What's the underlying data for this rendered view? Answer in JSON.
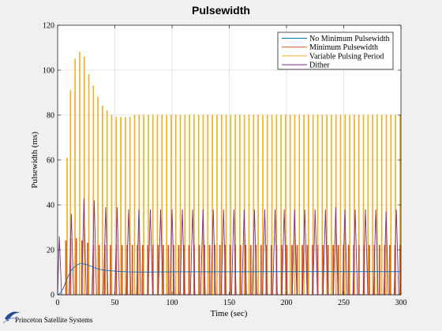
{
  "chart_data": {
    "type": "line",
    "title": "Pulsewidth",
    "xlabel": "Time (sec)",
    "ylabel": "Pulsewidth (ms)",
    "xlim": [
      0,
      300
    ],
    "ylim": [
      0,
      120
    ],
    "xticks": [
      0,
      50,
      100,
      150,
      200,
      250,
      300
    ],
    "yticks": [
      0,
      20,
      40,
      60,
      80,
      100,
      120
    ],
    "grid": true,
    "legend_position": "top-right",
    "series": [
      {
        "name": "No Minimum Pulsewidth",
        "color": "#0072bd",
        "style": "smooth",
        "x": [
          0,
          2,
          5,
          8,
          12,
          16,
          20,
          25,
          30,
          35,
          40,
          50,
          60,
          70,
          80,
          100,
          150,
          200,
          250,
          300
        ],
        "y": [
          0,
          0.5,
          3,
          7,
          11,
          13,
          14,
          13.5,
          12.5,
          11.5,
          11,
          10.5,
          10.2,
          10.1,
          10.1,
          10.2,
          10.2,
          10.3,
          10.3,
          10.3
        ]
      },
      {
        "name": "Minimum Pulsewidth",
        "color": "#d95319",
        "style": "pulse",
        "pulse_width": 0.6,
        "x": [
          7,
          11,
          16,
          21,
          26,
          31,
          36,
          41,
          46,
          51,
          56,
          60.5,
          65,
          69.5,
          74,
          78.5,
          83,
          87.5,
          92,
          96.5,
          101,
          105.5,
          110,
          114.5,
          119,
          123.5,
          128,
          132.5,
          137,
          141.5,
          146,
          150.5,
          155,
          159.5,
          164,
          168.5,
          173,
          177.5,
          182,
          186.5,
          191,
          195.5,
          200,
          204.5,
          209,
          213.5,
          218,
          222.5,
          227,
          231.5,
          236,
          240.5,
          245,
          249.5,
          254,
          258.5,
          263,
          267.5,
          272,
          276.5,
          281,
          285.5,
          290,
          294.5,
          299
        ],
        "y": [
          24,
          25,
          25,
          24,
          23,
          22,
          22,
          22,
          22,
          22,
          22,
          22,
          22,
          22,
          22,
          22,
          22,
          22,
          22,
          22,
          22,
          22,
          22,
          22,
          22,
          22,
          22,
          22,
          22,
          22,
          22,
          22,
          22,
          22,
          22,
          22,
          22,
          22,
          22,
          22,
          22,
          22,
          22,
          22,
          22,
          22,
          22,
          22,
          22,
          22,
          22,
          22,
          22,
          22,
          22,
          22,
          22,
          22,
          22,
          22,
          22,
          22,
          22,
          22,
          22
        ]
      },
      {
        "name": "Variable Pulsing Period",
        "color": "#edb120",
        "style": "pulse",
        "pulse_width": 0.5,
        "x": [
          8,
          11,
          15,
          19,
          23,
          27,
          31,
          35,
          39,
          43,
          47,
          51,
          55,
          59,
          63,
          67,
          71,
          75,
          79,
          83,
          87,
          91,
          95,
          99,
          103,
          107,
          111,
          115,
          119,
          123,
          127,
          131,
          135,
          139,
          143,
          147,
          151,
          155,
          159,
          163,
          167,
          171,
          175,
          179,
          183,
          187,
          191,
          195,
          199,
          203,
          207,
          211,
          215,
          219,
          223,
          227,
          231,
          235,
          239,
          243,
          247,
          251,
          255,
          259,
          263,
          267,
          271,
          275,
          279,
          283,
          287,
          291,
          295,
          299
        ],
        "y": [
          61,
          91,
          105,
          108,
          106,
          98,
          93,
          88,
          84,
          82,
          80,
          79,
          79,
          79,
          79,
          80,
          80,
          80,
          80,
          80,
          80,
          80,
          80,
          80,
          80,
          80,
          80,
          80,
          80,
          80,
          80,
          80,
          80,
          80,
          80,
          80,
          80,
          80,
          80,
          80,
          80,
          80,
          80,
          80,
          80,
          80,
          80,
          80,
          80,
          80,
          80,
          80,
          80,
          80,
          80,
          80,
          80,
          80,
          80,
          80,
          80,
          80,
          80,
          80,
          80,
          80,
          80,
          80,
          80,
          80,
          80,
          80,
          80,
          80
        ]
      },
      {
        "name": "Dither",
        "color": "#7e2f8e",
        "style": "spike",
        "spike_width": 4,
        "x": [
          1.5,
          12,
          23,
          32,
          42,
          52,
          62,
          71,
          81,
          90,
          100,
          109,
          118,
          127,
          136,
          145,
          154,
          163,
          172,
          181,
          190,
          198,
          207,
          216,
          225,
          234,
          243,
          251,
          260,
          269,
          278,
          287,
          296
        ],
        "y": [
          26,
          36,
          43,
          42,
          39,
          39,
          38,
          38,
          38,
          38,
          38,
          38,
          38,
          38,
          38,
          38,
          38,
          38,
          38,
          38,
          38,
          38,
          38,
          38,
          38,
          38,
          39,
          38,
          38,
          38,
          38,
          37,
          38
        ]
      }
    ]
  },
  "footer": {
    "logo_text": "Princeton Satellite Systems"
  }
}
